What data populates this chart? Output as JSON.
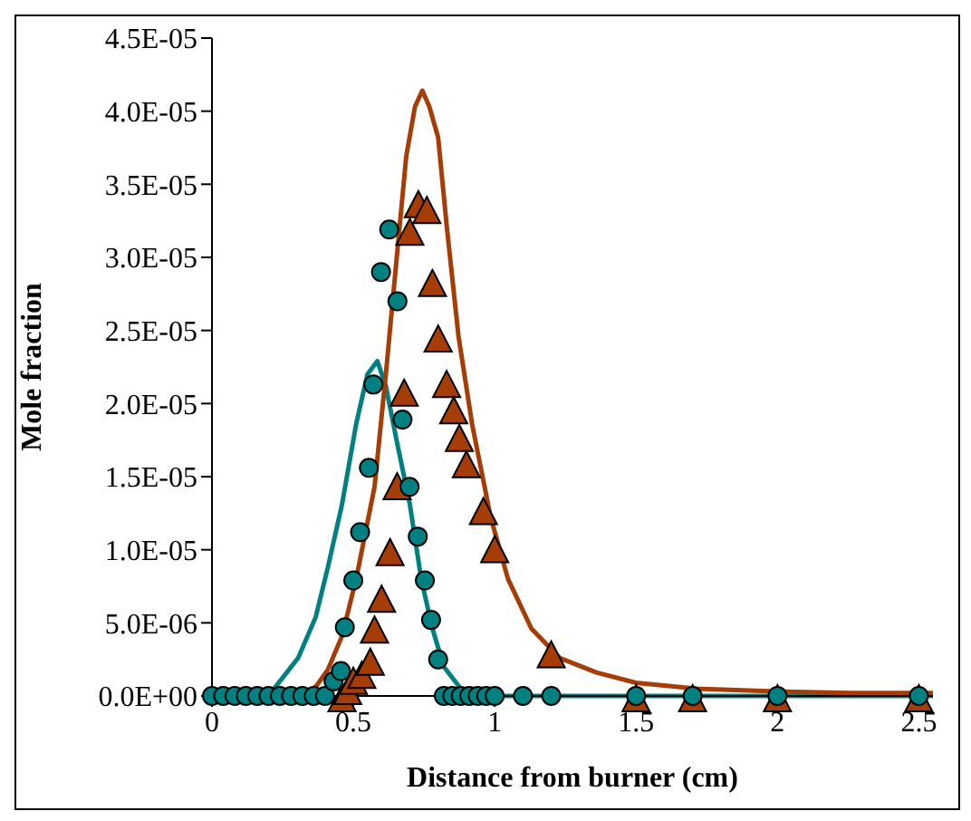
{
  "chart_data": {
    "type": "scatter",
    "xlabel": "Distance from burner (cm)",
    "ylabel": "Mole fraction",
    "xlim": [
      0,
      2.55
    ],
    "xticks": [
      0,
      0.5,
      1,
      1.5,
      2,
      2.5
    ],
    "ylim": [
      0,
      4.5e-05
    ],
    "yticks": [
      {
        "value": 0,
        "label": "0.0E+00"
      },
      {
        "value": 5e-06,
        "label": "5.0E-06"
      },
      {
        "value": 1e-05,
        "label": "1.0E-05"
      },
      {
        "value": 1.5e-05,
        "label": "1.5E-05"
      },
      {
        "value": 2e-05,
        "label": "2.0E-05"
      },
      {
        "value": 2.5e-05,
        "label": "2.5E-05"
      },
      {
        "value": 3e-05,
        "label": "3.0E-05"
      },
      {
        "value": 3.5e-05,
        "label": "3.5E-05"
      },
      {
        "value": 4e-05,
        "label": "4.0E-05"
      },
      {
        "value": 4.5e-05,
        "label": "4.5E-05"
      }
    ],
    "grid": false,
    "series": [
      {
        "type": "line",
        "color": "#008080",
        "marker": "none",
        "x": [
          0,
          0.2,
          0.24,
          0.305,
          0.367,
          0.41,
          0.46,
          0.51,
          0.55,
          0.585,
          0.615,
          0.655,
          0.7,
          0.74,
          0.78,
          0.82,
          0.88,
          0.92,
          1.5,
          2.55
        ],
        "values": [
          0,
          0,
          1e-06,
          2.6e-06,
          5.4e-06,
          8.8e-06,
          1.31e-05,
          1.86e-05,
          2.2e-05,
          2.29e-05,
          2.12e-05,
          1.73e-05,
          1.31e-05,
          8e-06,
          4.6e-06,
          2e-06,
          5e-07,
          0,
          0,
          0
        ]
      },
      {
        "type": "line",
        "color": "#a63c06",
        "marker": "none",
        "x": [
          0,
          0.33,
          0.37,
          0.41,
          0.46,
          0.51,
          0.575,
          0.615,
          0.656,
          0.687,
          0.718,
          0.744,
          0.769,
          0.8,
          0.83,
          0.872,
          0.92,
          0.986,
          1.047,
          1.13,
          1.23,
          1.36,
          1.5,
          1.71,
          2.02,
          2.26,
          2.55
        ],
        "values": [
          0,
          0,
          7e-07,
          1.8e-06,
          4.1e-06,
          8e-06,
          1.43e-05,
          2.2e-05,
          3.05e-05,
          3.69e-05,
          4.03e-05,
          4.14e-05,
          4.03e-05,
          3.82e-05,
          3.22e-05,
          2.46e-05,
          1.86e-05,
          1.22e-05,
          8e-06,
          4.6e-06,
          2.6e-06,
          1.6e-06,
          9e-07,
          5e-07,
          3e-07,
          2e-07,
          2e-07
        ]
      },
      {
        "color": "#a63c06",
        "marker": "triangle",
        "x": [
          0.46,
          0.48,
          0.5,
          0.53,
          0.56,
          0.575,
          0.6,
          0.63,
          0.655,
          0.68,
          0.7,
          0.73,
          0.76,
          0.78,
          0.8,
          0.83,
          0.855,
          0.875,
          0.9,
          0.96,
          1.0,
          1.2,
          1.5,
          1.7,
          2.0,
          2.5
        ],
        "values": [
          0,
          5e-07,
          1.2e-06,
          1.6e-06,
          2.5e-06,
          4.7e-06,
          6.8e-06,
          1e-05,
          1.45e-05,
          2.09e-05,
          3.19e-05,
          3.38e-05,
          3.34e-05,
          2.84e-05,
          2.46e-05,
          2.15e-05,
          1.97e-05,
          1.78e-05,
          1.6e-05,
          1.28e-05,
          1.02e-05,
          3e-06,
          0,
          0,
          0,
          0
        ]
      },
      {
        "color": "#008080",
        "marker": "circle",
        "x": [
          0,
          0.04,
          0.08,
          0.12,
          0.16,
          0.2,
          0.24,
          0.28,
          0.32,
          0.36,
          0.4,
          0.43,
          0.456,
          0.47,
          0.5,
          0.524,
          0.555,
          0.571,
          0.598,
          0.627,
          0.656,
          0.674,
          0.699,
          0.728,
          0.753,
          0.775,
          0.8,
          0.82,
          0.85,
          0.88,
          0.91,
          0.94,
          0.97,
          1.0,
          1.1,
          1.2,
          1.5,
          1.7,
          2.0,
          2.5
        ],
        "values": [
          0,
          0,
          0,
          0,
          0,
          0,
          0,
          0,
          0,
          0,
          0,
          1e-06,
          1.7e-06,
          4.7e-06,
          7.9e-06,
          1.12e-05,
          1.56e-05,
          2.13e-05,
          2.9e-05,
          3.19e-05,
          2.7e-05,
          1.89e-05,
          1.43e-05,
          1.09e-05,
          7.9e-06,
          5.2e-06,
          2.5e-06,
          0,
          0,
          0,
          0,
          0,
          0,
          0,
          0,
          0,
          0,
          0,
          0,
          0
        ]
      }
    ]
  }
}
